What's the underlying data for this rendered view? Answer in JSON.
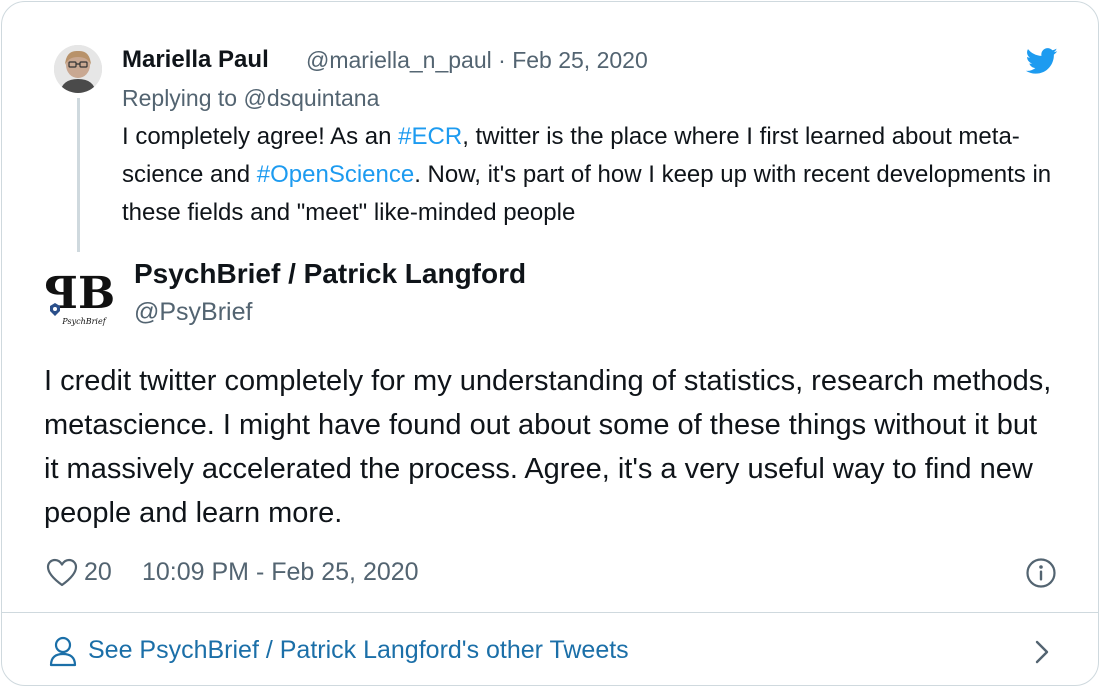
{
  "reply_tweet": {
    "author_name": "Mariella Paul",
    "author_handle": "@mariella_n_paul",
    "separator": "·",
    "date": "Feb 25, 2020",
    "replying_to_prefix": "Replying to ",
    "replying_to_handle": "@dsquintana",
    "text": {
      "part1": "I completely agree! As an ",
      "hashtag1": "#ECR",
      "part2": ", twitter is the place where I first learned about meta-science and ",
      "hashtag2": "#OpenScience",
      "part3": ". Now, it's part of how I keep up with recent developments in these fields and \"meet\" like-minded people"
    }
  },
  "main_tweet": {
    "author_name": "PsychBrief / Patrick Langford",
    "author_handle": "@PsyBrief",
    "avatar_logo_letters": "ꟼB",
    "avatar_logo_sub": "PsychBrief",
    "text": "I credit twitter completely for my understanding of statistics, research methods, metascience. I might have found out about some of these things without it but it massively accelerated the process. Agree, it's a very useful way to find new people and learn more.",
    "like_count": "20",
    "timestamp": "10:09 PM - Feb 25, 2020"
  },
  "footer": {
    "see_more_label": "See PsychBrief / Patrick Langford's other Tweets"
  },
  "icons": {
    "heart": "heart-icon",
    "info": "info-icon",
    "person": "person-icon",
    "chevron": "chevron-right-icon",
    "twitter": "twitter-bird-icon"
  },
  "colors": {
    "link_blue": "#1d9bf0",
    "footer_link": "#1b6fa8",
    "muted_text": "#536471",
    "border": "#cfd9de"
  }
}
